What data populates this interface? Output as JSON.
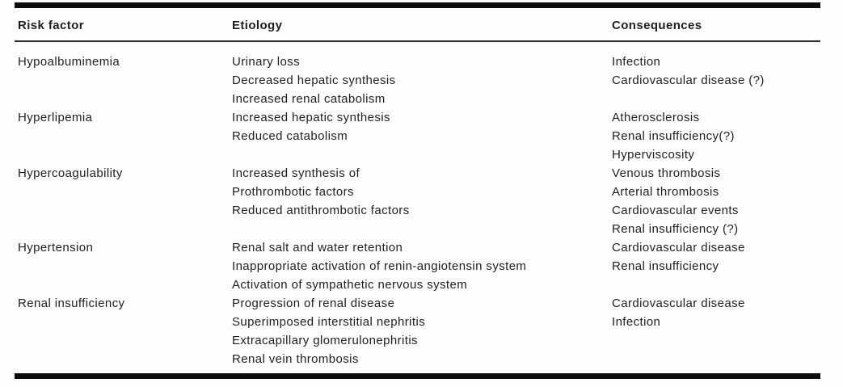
{
  "page": {
    "background_color": "#fdfdfd",
    "text_color": "#1f1f1f",
    "rule_color": "#0c0c0c"
  },
  "table": {
    "columns": [
      {
        "key": "risk_factor",
        "label": "Risk factor"
      },
      {
        "key": "etiology",
        "label": "Etiology"
      },
      {
        "key": "consequences",
        "label": "Consequences"
      }
    ],
    "groups": [
      {
        "risk_factor": "Hypoalbuminemia",
        "etiology": [
          "Urinary loss",
          "Decreased hepatic synthesis",
          "Increased renal catabolism"
        ],
        "consequences": [
          "Infection",
          "Cardiovascular disease (?)"
        ]
      },
      {
        "risk_factor": "Hyperlipemia",
        "etiology": [
          "Increased hepatic synthesis",
          "Reduced catabolism"
        ],
        "consequences": [
          "Atherosclerosis",
          "Renal insufficiency(?)",
          "Hyperviscosity"
        ]
      },
      {
        "risk_factor": "Hypercoagulability",
        "etiology": [
          "Increased synthesis of",
          "Prothrombotic factors",
          "Reduced antithrombotic factors"
        ],
        "consequences": [
          "Venous thrombosis",
          "Arterial thrombosis",
          "Cardiovascular events",
          "Renal insufficiency (?)"
        ]
      },
      {
        "risk_factor": "Hypertension",
        "etiology": [
          "Renal salt and water retention",
          "Inappropriate activation of renin-angiotensin system",
          "Activation of sympathetic nervous system"
        ],
        "consequences": [
          "Cardiovascular disease",
          "Renal insufficiency"
        ]
      },
      {
        "risk_factor": "Renal insufficiency",
        "etiology": [
          "Progression of renal disease",
          "Superimposed interstitial nephritis",
          "Extracapillary glomerulonephritis",
          "Renal vein thrombosis"
        ],
        "consequences": [
          "Cardiovascular disease",
          "Infection"
        ]
      }
    ]
  }
}
